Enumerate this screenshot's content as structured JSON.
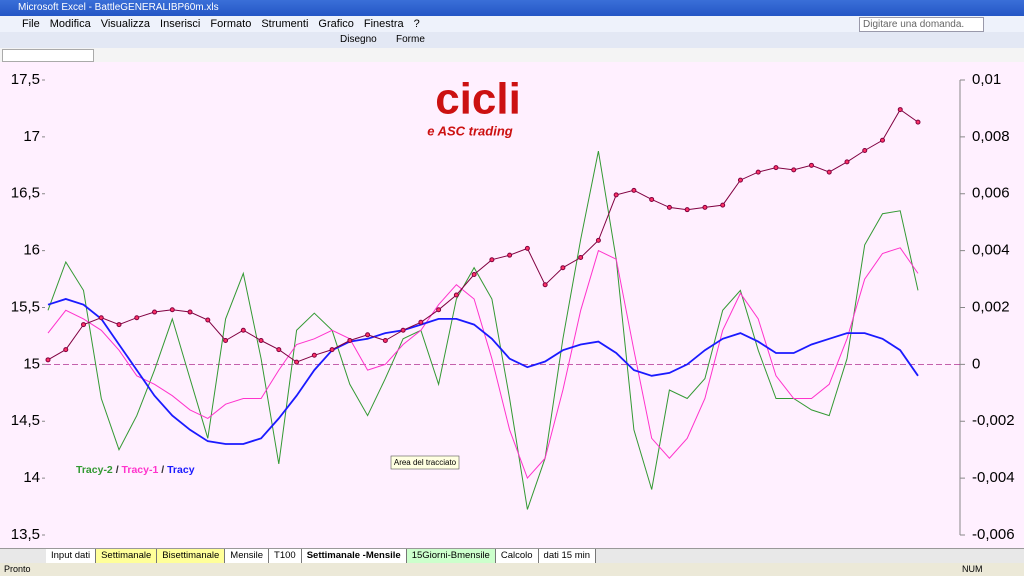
{
  "window": {
    "title": "Microsoft Excel - BattleGENERALIBP60m.xls"
  },
  "menu": [
    "File",
    "Modifica",
    "Visualizza",
    "Inserisci",
    "Formato",
    "Strumenti",
    "Grafico",
    "Finestra",
    "?"
  ],
  "help_box": "Digitare una domanda.",
  "toolbar": [
    "Disegno",
    "Forme"
  ],
  "sheet_tabs": [
    {
      "label": "Input dati",
      "color": "#ffffff"
    },
    {
      "label": "Settimanale",
      "color": "#ffff99"
    },
    {
      "label": "Bisettimanale",
      "color": "#ffff99"
    },
    {
      "label": "Mensile",
      "color": "#ffffff"
    },
    {
      "label": "T100",
      "color": "#ffffff"
    },
    {
      "label": "Settimanale -Mensile",
      "color": "#ffffff"
    },
    {
      "label": "15Giorni-Bmensile",
      "color": "#ccffcc"
    },
    {
      "label": "Calcolo",
      "color": "#ffffff"
    },
    {
      "label": "dati 15 min",
      "color": "#ffffff"
    }
  ],
  "status": {
    "left": "Pronto",
    "right": "NUM"
  },
  "chart_data": {
    "type": "line",
    "logo": {
      "title": "cicli",
      "subtitle": "e ASC trading"
    },
    "tooltip": "Area del tracciato",
    "legend_separator": "/",
    "ylim": [
      13.5,
      17.5
    ],
    "yticks": [
      {
        "value": 13.5,
        "label": "13,5"
      },
      14,
      {
        "value": 14.5,
        "label": "14,5"
      },
      15,
      {
        "value": 15.5,
        "label": "15,5"
      },
      16,
      {
        "value": 16.5,
        "label": "16,5"
      },
      17,
      {
        "value": 17.5,
        "label": "17,5"
      }
    ],
    "y2lim": [
      -0.006,
      0.01
    ],
    "y2ticks": [
      {
        "value": -0.006,
        "label": "-0,006"
      },
      {
        "value": -0.004,
        "label": "-0,004"
      },
      {
        "value": -0.002,
        "label": "-0,002"
      },
      0,
      {
        "value": 0.002,
        "label": "0,002"
      },
      {
        "value": 0.004,
        "label": "0,004"
      },
      {
        "value": 0.006,
        "label": "0,006"
      },
      {
        "value": 0.008,
        "label": "0,008"
      },
      {
        "value": 0.01,
        "label": "0,01"
      }
    ],
    "series": [
      {
        "color": "#800040",
        "markers": true,
        "values": [
          15.04,
          15.13,
          15.35,
          15.41,
          15.35,
          15.41,
          15.46,
          15.48,
          15.46,
          15.39,
          15.21,
          15.3,
          15.21,
          15.13,
          15.02,
          15.08,
          15.13,
          15.21,
          15.26,
          15.21,
          15.3,
          15.37,
          15.48,
          15.61,
          15.79,
          15.92,
          15.96,
          16.02,
          15.7,
          15.85,
          15.94,
          16.09,
          16.49,
          16.53,
          16.45,
          16.38,
          16.36,
          16.38,
          16.4,
          16.62,
          16.69,
          16.73,
          16.71,
          16.75,
          16.69,
          16.78,
          16.88,
          16.97,
          17.24,
          17.13
        ]
      },
      {
        "name": "Tracy-2",
        "color": "#339933",
        "axis": "y2",
        "values": [
          0.0019,
          0.0036,
          0.0026,
          -0.0012,
          -0.003,
          -0.0018,
          -0.0002,
          0.0016,
          -0.0005,
          -0.0026,
          0.0016,
          0.0032,
          0.0002,
          -0.0035,
          0.0012,
          0.0018,
          0.0012,
          -0.0007,
          -0.0018,
          -0.0005,
          0.0009,
          0.0012,
          -0.0007,
          0.0023,
          0.0034,
          0.0023,
          -0.0012,
          -0.0051,
          -0.0033,
          0.0009,
          0.0044,
          0.0075,
          0.0037,
          -0.0023,
          -0.0044,
          -0.0009,
          -0.0012,
          -0.0005,
          0.0019,
          0.0026,
          0.0005,
          -0.0012,
          -0.0012,
          -0.0016,
          -0.0018,
          0.0002,
          0.0042,
          0.0053,
          0.0054,
          0.0026
        ]
      },
      {
        "name": "Tracy-1",
        "color": "#ff33cc",
        "axis": "y2",
        "values": [
          0.0011,
          0.0019,
          0.0016,
          0.0012,
          0.0005,
          -0.0004,
          -0.0007,
          -0.0011,
          -0.0016,
          -0.0019,
          -0.0014,
          -0.0012,
          -0.0012,
          -0.0002,
          0.0007,
          0.0009,
          0.0012,
          0.0009,
          -0.0002,
          0,
          0.0007,
          0.0012,
          0.0021,
          0.0028,
          0.0023,
          0.0002,
          -0.0023,
          -0.004,
          -0.0033,
          -0.0009,
          0.0019,
          0.004,
          0.0037,
          0.0005,
          -0.0026,
          -0.0033,
          -0.0026,
          -0.0012,
          0.0012,
          0.0025,
          0.0016,
          -0.0004,
          -0.0012,
          -0.0012,
          -0.0007,
          0.0009,
          0.003,
          0.0039,
          0.0041,
          0.0032
        ]
      },
      {
        "name": "Tracy",
        "color": "#1a1aff",
        "axis": "y2",
        "values": [
          0.0021,
          0.0023,
          0.0021,
          0.0016,
          0.0007,
          -0.0002,
          -0.0011,
          -0.0018,
          -0.0023,
          -0.0027,
          -0.0028,
          -0.0028,
          -0.0026,
          -0.0019,
          -0.0011,
          -0.0002,
          0.0005,
          0.0008,
          0.0009,
          0.0011,
          0.0012,
          0.0014,
          0.0016,
          0.0016,
          0.0014,
          0.0009,
          0.0002,
          -0.0001,
          0.0001,
          0.0005,
          0.0007,
          0.0008,
          0.0004,
          -0.0002,
          -0.0004,
          -0.0003,
          0,
          0.0005,
          0.0009,
          0.0011,
          0.0008,
          0.0004,
          0.0004,
          0.0007,
          0.0009,
          0.0011,
          0.0011,
          0.0009,
          0.0005,
          -0.0004
        ]
      }
    ]
  }
}
